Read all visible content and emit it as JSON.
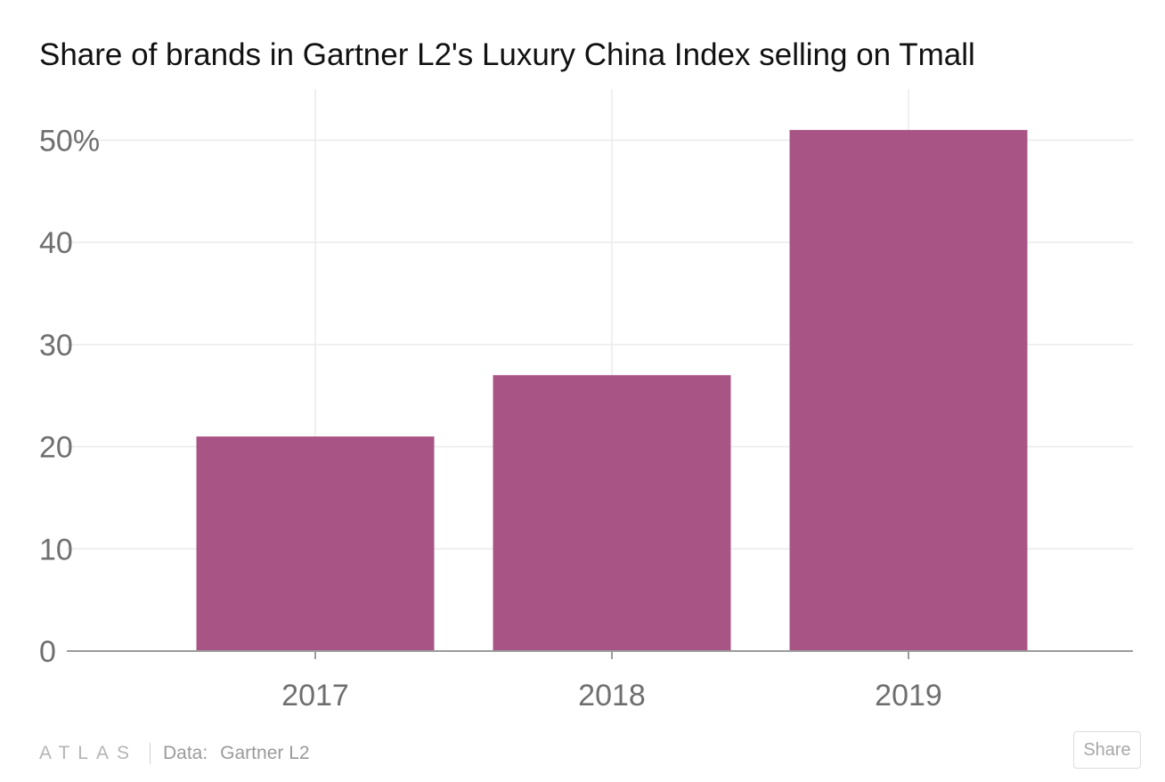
{
  "title": "Share of brands in Gartner L2's Luxury China Index selling on Tmall",
  "footer": {
    "logo_text": "ATLAS",
    "source_label": "Data:",
    "source_value": "Gartner L2",
    "share_label": "Share"
  },
  "colors": {
    "bar": "#a85585",
    "grid": "#ebebeb",
    "axis": "#9b9b9b",
    "tick_text": "#6f6f6f"
  },
  "chart_data": {
    "type": "bar",
    "title": "Share of brands in Gartner L2's Luxury China Index selling on Tmall",
    "categories": [
      "2017",
      "2018",
      "2019"
    ],
    "values": [
      21,
      27,
      51
    ],
    "unit": "%",
    "xlabel": "",
    "ylabel": "",
    "ylim": [
      0,
      55
    ],
    "yticks": [
      0,
      10,
      20,
      30,
      40,
      50
    ],
    "ytick_labels": [
      "0",
      "10",
      "20",
      "30",
      "40",
      "50%"
    ],
    "grid": true,
    "legend": "none"
  }
}
